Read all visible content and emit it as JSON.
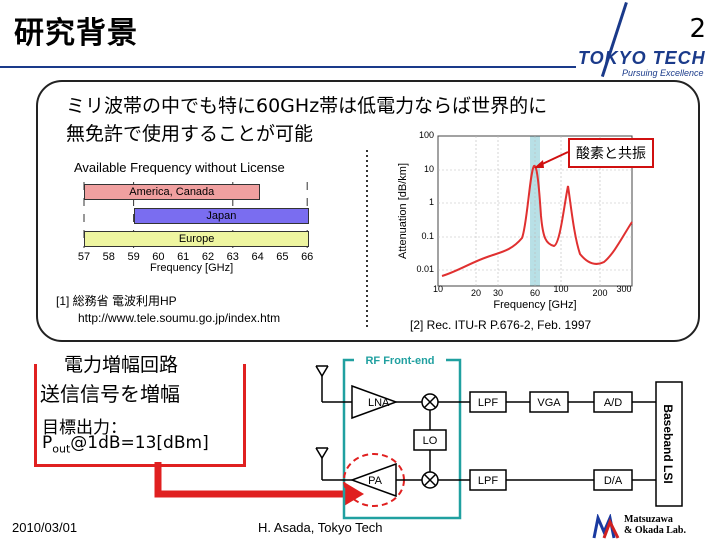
{
  "header": {
    "title": "研究背景",
    "page_number": "2",
    "logo_main": "TOKYO TECH",
    "logo_sub": "Pursuing Excellence"
  },
  "intro": {
    "line1": "ミリ波帯の中でも特に60GHz帯は低電力ならば世界的に",
    "line2": "無免許で使用することが可能"
  },
  "freq_chart": {
    "title": "Available Frequency without License",
    "bands": [
      {
        "name": "America, Canada",
        "start": 57,
        "end": 64,
        "color": "#f0a0a0"
      },
      {
        "name": "Japan",
        "start": 59,
        "end": 66,
        "color": "#7a6df0"
      },
      {
        "name": "Europe",
        "start": 57,
        "end": 66,
        "color": "#eef5a0"
      }
    ],
    "ticks": [
      "57",
      "58",
      "59",
      "60",
      "61",
      "62",
      "63",
      "64",
      "65",
      "66"
    ],
    "xlabel": "Frequency [GHz]"
  },
  "ref1": {
    "line1": "[1] 総務省 電波利用HP",
    "line2": "http://www.tele.soumu.go.jp/index.htm"
  },
  "atten_chart": {
    "ylabel": "Attenuation [dB/km]",
    "xlabel": "Frequency [GHz]",
    "yticks": [
      "100",
      "10",
      "1",
      "0.1",
      "0.01"
    ],
    "xticks": [
      "10",
      "20",
      "30",
      "60",
      "100",
      "200",
      "300"
    ],
    "callout": "酸素と共振",
    "ref": "[2] Rec. ITU-R P.676-2, Feb. 1997"
  },
  "section": {
    "title": "電力増幅回路",
    "line1": "送信信号を増幅",
    "line2": "目標出力：",
    "line3_prefix": "P",
    "line3_sub": "out",
    "line3_rest": "@1dB=13[dBm]"
  },
  "block_diagram": {
    "frontend_label": "RF Front-end",
    "lna": "LNA",
    "pa": "PA",
    "lo": "LO",
    "lpf_top": "LPF",
    "lpf_bot": "LPF",
    "vga": "VGA",
    "ad": "A/D",
    "da": "D/A",
    "baseband": "Baseband LSI"
  },
  "footer": {
    "date": "2010/03/01",
    "author": "H. Asada, Tokyo Tech",
    "lab_line1": "Matsuzawa",
    "lab_line2": "& Okada Lab."
  }
}
